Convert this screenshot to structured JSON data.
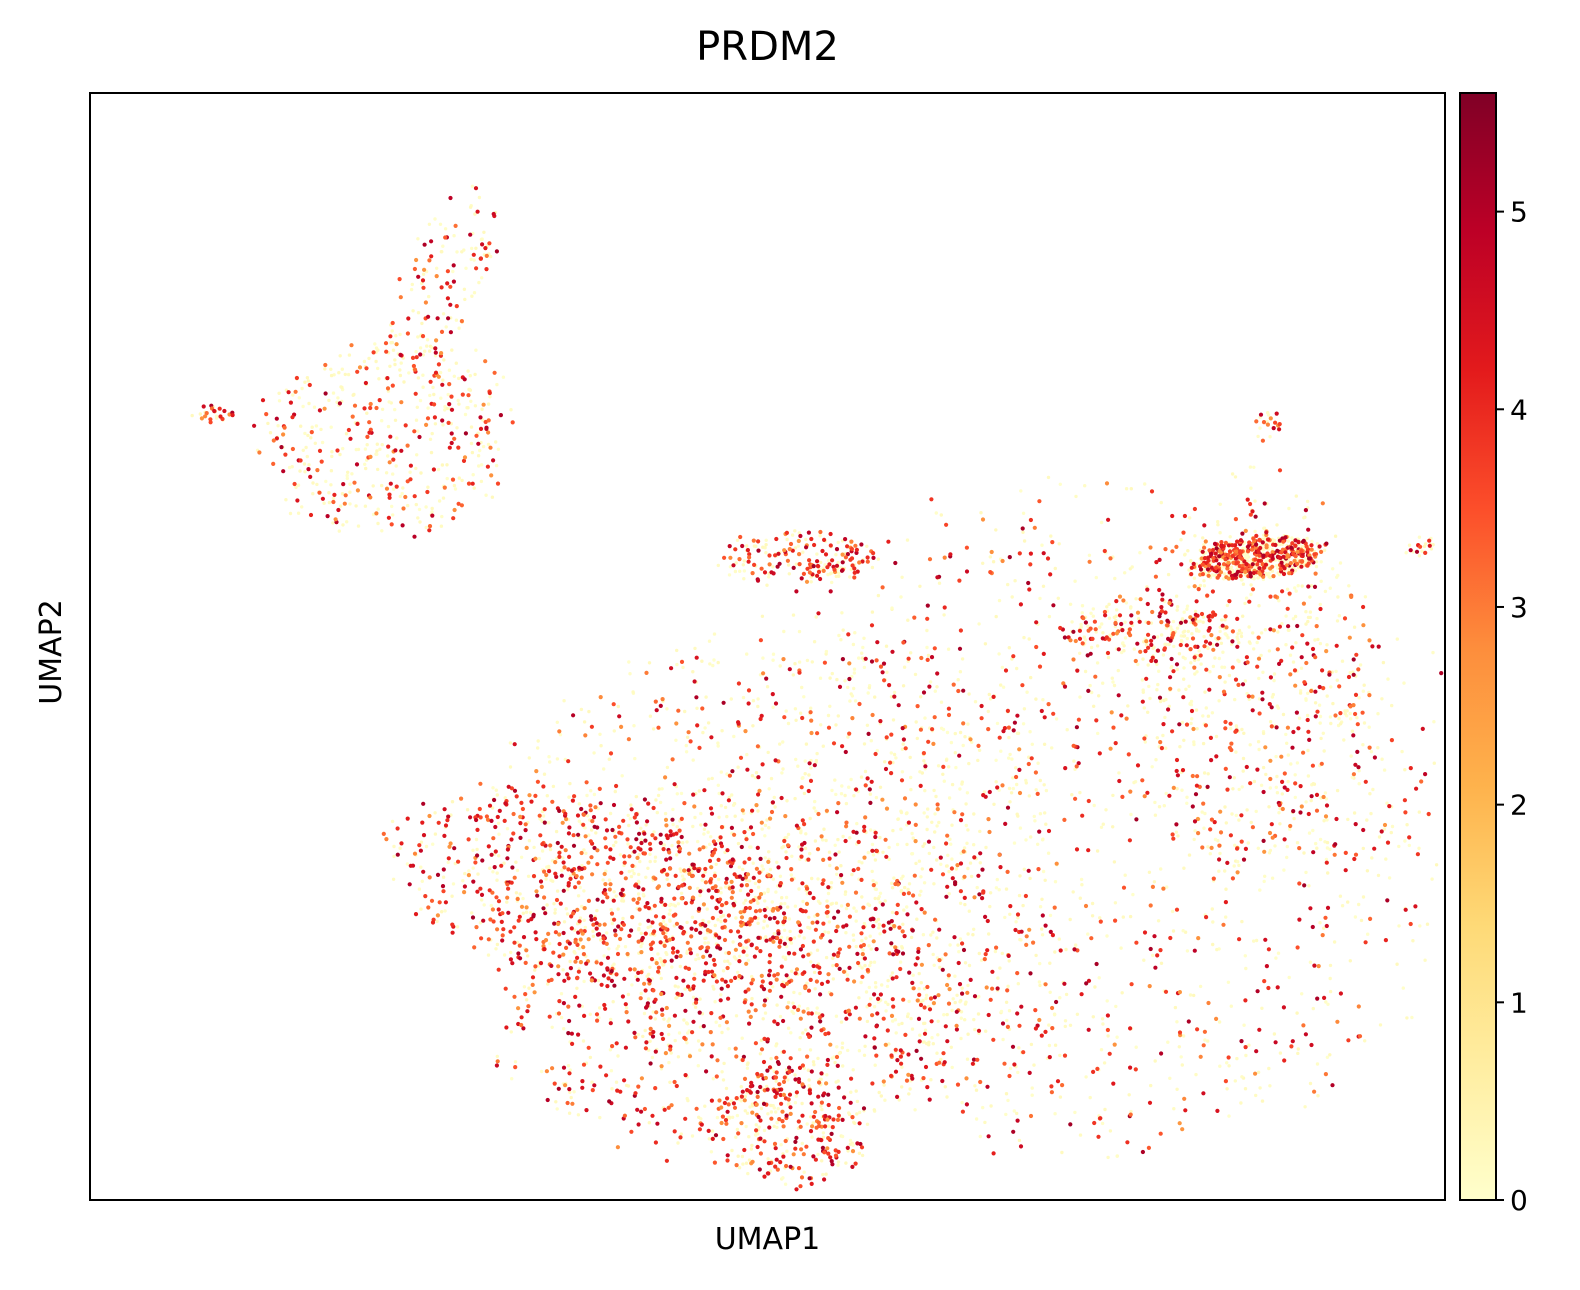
{
  "chart_data": {
    "type": "scatter",
    "title": "PRDM2",
    "xlabel": "UMAP1",
    "ylabel": "UMAP2",
    "xticks": [],
    "yticks": [],
    "grid": false,
    "legend": "none",
    "colorbar": {
      "cmap": "YlOrRd",
      "range": [
        0,
        5.6
      ],
      "ticks": [
        "0",
        "1",
        "2",
        "3",
        "4",
        "5"
      ],
      "tick_values": [
        0,
        1,
        2,
        3,
        4,
        5
      ],
      "colors": [
        "#ffffcc",
        "#ffeda0",
        "#fed976",
        "#feb24c",
        "#fd8d3c",
        "#fc4e2a",
        "#e31a1c",
        "#bd0026",
        "#800026"
      ]
    },
    "axis_ranges": {
      "x": [
        0,
        100
      ],
      "y": [
        0,
        100
      ]
    },
    "clusters": [
      {
        "cx": 86.0,
        "cy": 58.0,
        "rx": 5.0,
        "ry": 2.0,
        "rot": 8,
        "n": 650,
        "mean_expr": 0.45
      },
      {
        "cx": 73.0,
        "cy": 34.0,
        "rx": 29.0,
        "ry": 31.0,
        "rot": 0,
        "n": 1400,
        "mean_expr": 0.45
      },
      {
        "cx": 86.0,
        "cy": 47.0,
        "rx": 9.0,
        "ry": 19.0,
        "rot": 0,
        "n": 500,
        "mean_expr": 0.4
      },
      {
        "cx": 51.0,
        "cy": 23.0,
        "rx": 23.0,
        "ry": 13.0,
        "rot": -15,
        "n": 700,
        "mean_expr": 0.55
      },
      {
        "cx": 22.0,
        "cy": 69.0,
        "rx": 10.0,
        "ry": 9.0,
        "rot": 20,
        "n": 450,
        "mean_expr": 0.4
      },
      {
        "cx": 26.0,
        "cy": 83.0,
        "rx": 3.2,
        "ry": 9.5,
        "rot": -20,
        "n": 140,
        "mean_expr": 0.45
      },
      {
        "cx": 37.0,
        "cy": 28.0,
        "rx": 16.0,
        "ry": 9.0,
        "rot": -20,
        "n": 650,
        "mean_expr": 0.75
      },
      {
        "cx": 52.0,
        "cy": 58.0,
        "rx": 6.0,
        "ry": 2.5,
        "rot": 0,
        "n": 170,
        "mean_expr": 0.6
      },
      {
        "cx": 51.0,
        "cy": 37.0,
        "rx": 22.0,
        "ry": 15.0,
        "rot": 10,
        "n": 650,
        "mean_expr": 0.35
      },
      {
        "cx": 47.0,
        "cy": 17.0,
        "rx": 18.0,
        "ry": 14.0,
        "rot": 0,
        "n": 700,
        "mean_expr": 0.55
      },
      {
        "cx": 52.0,
        "cy": 6.5,
        "rx": 6.0,
        "ry": 5.5,
        "rot": 0,
        "n": 250,
        "mean_expr": 0.6
      },
      {
        "cx": 54.0,
        "cy": 57.0,
        "rx": 2.0,
        "ry": 1.0,
        "rot": 0,
        "n": 20,
        "mean_expr": 0.7
      },
      {
        "cx": 78.0,
        "cy": 51.0,
        "rx": 6.5,
        "ry": 3.2,
        "rot": 0,
        "n": 200,
        "mean_expr": 0.45
      },
      {
        "cx": 98.0,
        "cy": 59.0,
        "rx": 1.8,
        "ry": 0.8,
        "rot": 20,
        "n": 20,
        "mean_expr": 0.55
      },
      {
        "cx": 9.0,
        "cy": 71.0,
        "rx": 1.8,
        "ry": 0.8,
        "rot": 0,
        "n": 25,
        "mean_expr": 0.6
      },
      {
        "cx": 87.0,
        "cy": 70.0,
        "rx": 1.2,
        "ry": 1.6,
        "rot": -30,
        "n": 20,
        "mean_expr": 0.6
      }
    ]
  }
}
